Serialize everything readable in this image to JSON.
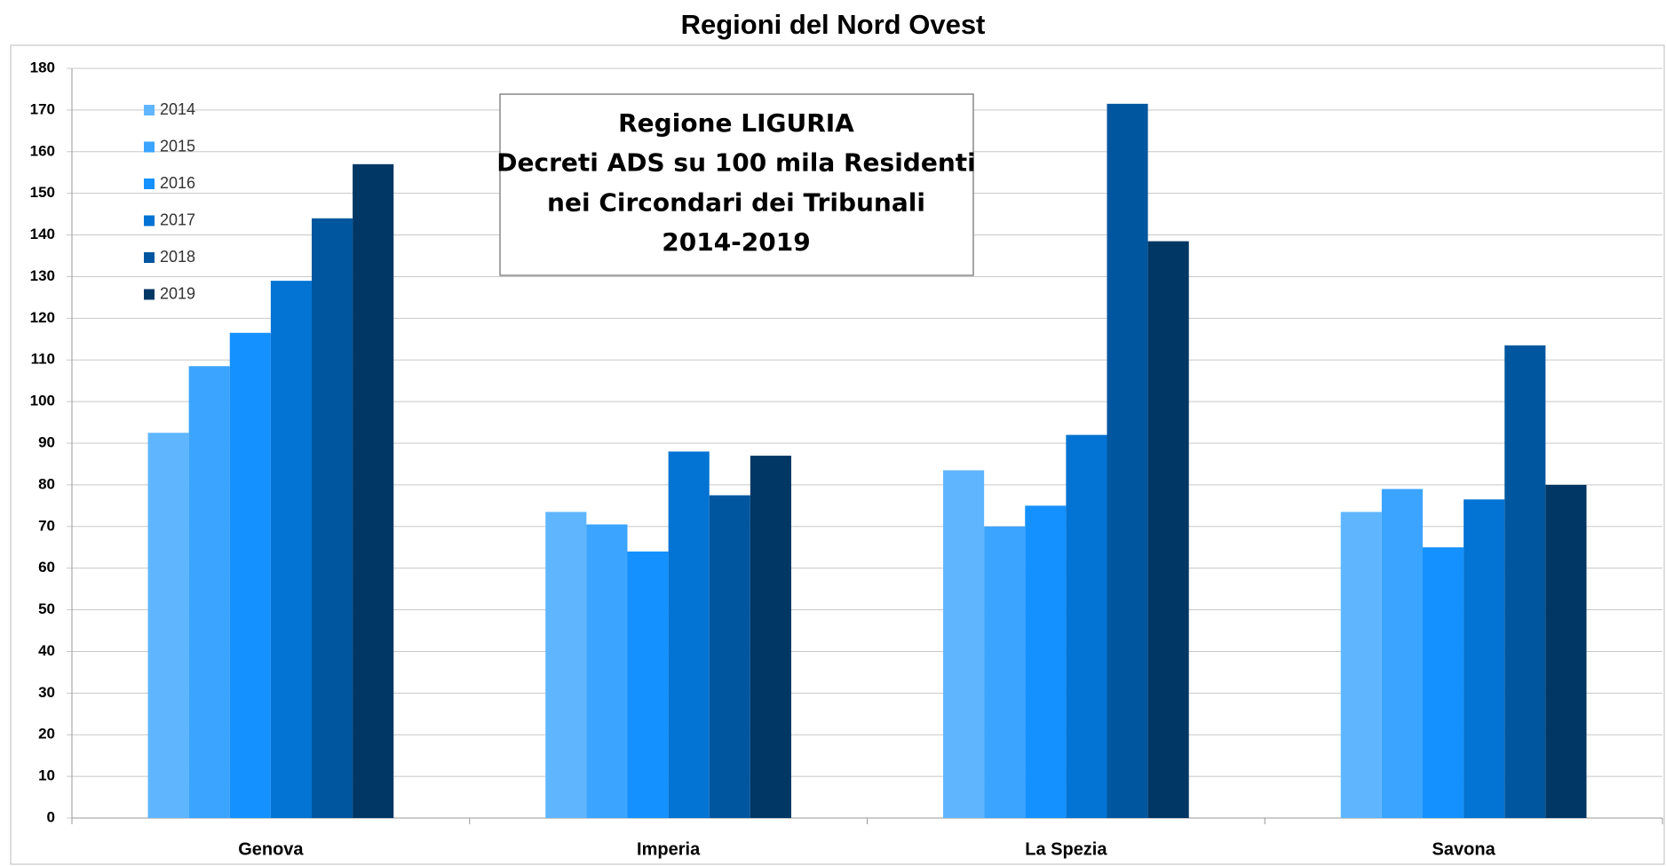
{
  "chart_data": {
    "type": "bar",
    "title": "Regioni del Nord Ovest",
    "annotation": [
      "Regione LIGURIA",
      "Decreti ADS su 100 mila Residenti",
      "nei Circondari dei Tribunali",
      "2014-2019"
    ],
    "categories": [
      "Genova",
      "Imperia",
      "La Spezia",
      "Savona"
    ],
    "series": [
      {
        "name": "2014",
        "color": "#5fb6ff",
        "values": [
          92.5,
          73.5,
          83.5,
          73.5
        ]
      },
      {
        "name": "2015",
        "color": "#3ba4ff",
        "values": [
          108.5,
          70.5,
          70,
          79
        ]
      },
      {
        "name": "2016",
        "color": "#1591ff",
        "values": [
          116.5,
          64,
          75,
          65
        ]
      },
      {
        "name": "2017",
        "color": "#0373d4",
        "values": [
          129,
          88,
          92,
          76.5
        ]
      },
      {
        "name": "2018",
        "color": "#01579f",
        "values": [
          144,
          77.5,
          171.5,
          113.5
        ]
      },
      {
        "name": "2019",
        "color": "#013764",
        "values": [
          157,
          87,
          138.5,
          80
        ]
      }
    ],
    "ylim": [
      0,
      180
    ],
    "yticks": [
      0,
      10,
      20,
      30,
      40,
      50,
      60,
      70,
      80,
      90,
      100,
      110,
      120,
      130,
      140,
      150,
      160,
      170,
      180
    ],
    "grid": true,
    "legend": "top-left"
  }
}
